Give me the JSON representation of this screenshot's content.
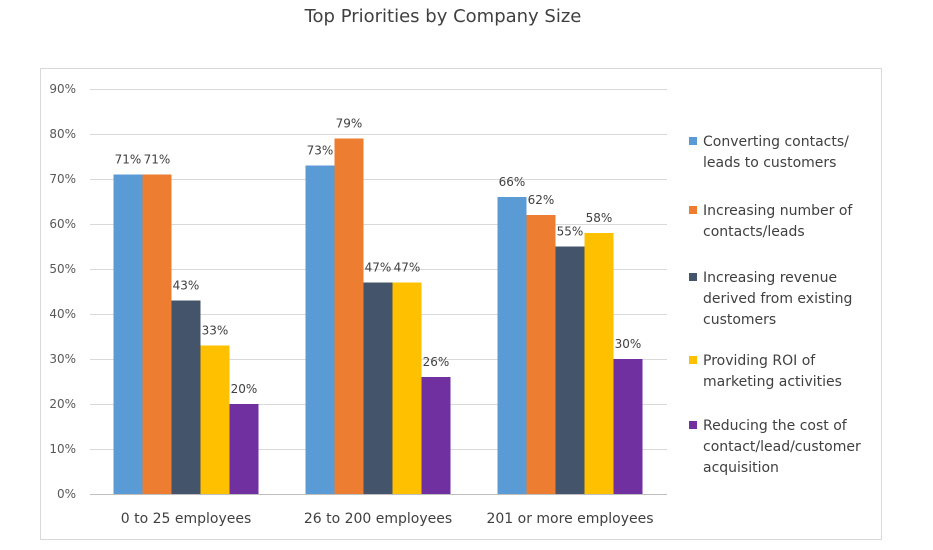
{
  "chart_data": {
    "type": "bar",
    "title": "Top Priorities by Company Size",
    "xlabel": "",
    "ylabel": "",
    "ylim": [
      0,
      90
    ],
    "ytick_values": [
      0,
      10,
      20,
      30,
      40,
      50,
      60,
      70,
      80,
      90
    ],
    "yticks": [
      "0%",
      "10%",
      "20%",
      "30%",
      "40%",
      "50%",
      "60%",
      "70%",
      "80%",
      "90%"
    ],
    "grid": true,
    "legend_position": "right",
    "categories": [
      "0 to 25 employees",
      "26 to 200 employees",
      "201 or more employees"
    ],
    "series": [
      {
        "name": "Converting contacts/ leads to customers",
        "legend_lines": [
          "Converting contacts/",
          "leads to customers"
        ],
        "color": "#5B9BD5",
        "values": [
          71,
          73,
          66
        ],
        "labels": [
          "71%",
          "73%",
          "66%"
        ]
      },
      {
        "name": "Increasing number of contacts/leads",
        "legend_lines": [
          "Increasing number of",
          "contacts/leads"
        ],
        "color": "#ED7D31",
        "values": [
          71,
          79,
          62
        ],
        "labels": [
          "71%",
          "79%",
          "62%"
        ]
      },
      {
        "name": "Increasing revenue derived from existing customers",
        "legend_lines": [
          "Increasing revenue",
          "derived from existing",
          "customers"
        ],
        "color": "#44546A",
        "values": [
          43,
          47,
          55
        ],
        "labels": [
          "43%",
          "47%",
          "55%"
        ]
      },
      {
        "name": "Providing ROI of marketing activities",
        "legend_lines": [
          "Providing ROI of",
          "marketing activities"
        ],
        "color": "#FFC000",
        "values": [
          33,
          47,
          58
        ],
        "labels": [
          "33%",
          "47%",
          "58%"
        ]
      },
      {
        "name": "Reducing the cost of contact/lead/customer acquisition",
        "legend_lines": [
          "Reducing the cost of",
          "contact/lead/customer",
          "acquisition"
        ],
        "color": "#7030A0",
        "values": [
          20,
          26,
          30
        ],
        "labels": [
          "20%",
          "26%",
          "30%"
        ]
      }
    ]
  }
}
